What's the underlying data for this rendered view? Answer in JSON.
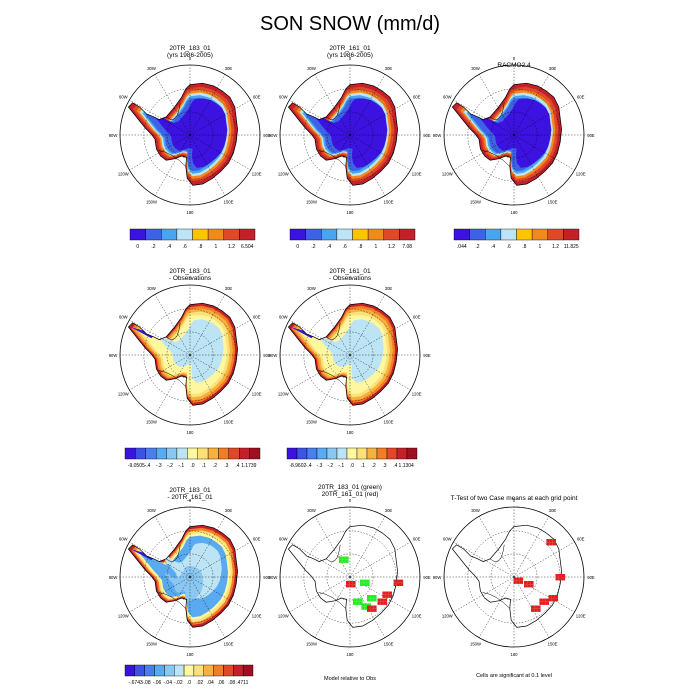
{
  "title": "SON SNOW (mm/d)",
  "colors": {
    "snow_scale": [
      "#3b12e0",
      "#3d62e6",
      "#48a5f0",
      "#bde4f5",
      "#ffc400",
      "#f08a1c",
      "#e0482a",
      "#c4202a"
    ],
    "diff_scale": [
      "#3b12e0",
      "#3d52e6",
      "#4a7df0",
      "#5aaaf2",
      "#8ac8f2",
      "#bde4f5",
      "#fdf8a0",
      "#fde07a",
      "#f7b13f",
      "#f27d24",
      "#e0482a",
      "#c4202a",
      "#9e1020"
    ],
    "green": "#22ee22",
    "red": "#e02020"
  },
  "panels": [
    {
      "id": "p1",
      "type": "snow",
      "title": [
        "20TR_183_01",
        "(yrs 1986-2005)"
      ],
      "colorbar": {
        "ticks": [
          "0",
          ".2",
          ".4",
          ".6",
          ".8",
          "1",
          "1.2",
          "6.504"
        ]
      }
    },
    {
      "id": "p2",
      "type": "snow",
      "title": [
        "20TR_161_01",
        "(yrs 1986-2005)"
      ],
      "colorbar": {
        "ticks": [
          "0",
          ".2",
          ".4",
          ".6",
          ".8",
          "1",
          "1.2",
          "7.08"
        ]
      }
    },
    {
      "id": "p3",
      "type": "snow",
      "title": [
        "RACMO2.4"
      ],
      "colorbar": {
        "ticks": [
          ".044",
          ".2",
          ".4",
          ".6",
          ".8",
          "1",
          "1.2",
          "11.825"
        ]
      }
    },
    {
      "id": "p4",
      "type": "diff",
      "title": [
        "20TR_183_01",
        "- Observations"
      ],
      "colorbar": {
        "ticks": [
          "-9.0505",
          "-.4",
          "-.3",
          "-.2",
          "-.1",
          ".0",
          ".1",
          ".2",
          ".3",
          ".4",
          "1.1739"
        ]
      }
    },
    {
      "id": "p5",
      "type": "diff",
      "title": [
        "20TR_161_01",
        "- Observations"
      ],
      "colorbar": {
        "ticks": [
          "-8.9602",
          "-.4",
          "-.3",
          "-.2",
          "-.1",
          ".0",
          ".1",
          ".2",
          ".3",
          ".4",
          "1.1304"
        ]
      }
    },
    {
      "id": "p6",
      "type": "diff",
      "title": [
        "20TR_183_01",
        "- 20TR_161_01"
      ],
      "colorbar": {
        "ticks": [
          "-.6743",
          "-.08",
          "-.06",
          "-.04",
          "-.02",
          ".0",
          ".02",
          ".04",
          ".06",
          ".08",
          ".4711"
        ]
      }
    },
    {
      "id": "p7",
      "type": "sig",
      "title": [
        "20TR_183_01 (green)",
        "20TR_161_01 (red)"
      ],
      "caption": "Model relative to Obs"
    },
    {
      "id": "p8",
      "type": "sig",
      "title": [
        "T-Test of two Case means at each grid point"
      ],
      "caption": "Cells are significant at 0.1 level"
    }
  ],
  "lon_labels": [
    "0",
    "30E",
    "60E",
    "90E",
    "120E",
    "150E",
    "180",
    "150W",
    "120W",
    "90W",
    "60W",
    "30W"
  ],
  "chart_data": [
    {
      "type": "heatmap",
      "projection": "south-polar-stereographic",
      "title": "20TR_183_01 (yrs 1986-2005)",
      "unit": "mm/d",
      "levels": [
        0,
        0.2,
        0.4,
        0.6,
        0.8,
        1,
        1.2
      ],
      "max": 6.504
    },
    {
      "type": "heatmap",
      "projection": "south-polar-stereographic",
      "title": "20TR_161_01 (yrs 1986-2005)",
      "unit": "mm/d",
      "levels": [
        0,
        0.2,
        0.4,
        0.6,
        0.8,
        1,
        1.2
      ],
      "max": 7.08
    },
    {
      "type": "heatmap",
      "projection": "south-polar-stereographic",
      "title": "RACMO2.4",
      "unit": "mm/d",
      "min": 0.044,
      "levels": [
        0.2,
        0.4,
        0.6,
        0.8,
        1,
        1.2
      ],
      "max": 11.825
    },
    {
      "type": "heatmap",
      "projection": "south-polar-stereographic",
      "title": "20TR_183_01 - Observations",
      "min": -9.0505,
      "levels": [
        -0.4,
        -0.3,
        -0.2,
        -0.1,
        0,
        0.1,
        0.2,
        0.3,
        0.4
      ],
      "max": 1.1739
    },
    {
      "type": "heatmap",
      "projection": "south-polar-stereographic",
      "title": "20TR_161_01 - Observations",
      "min": -8.9602,
      "levels": [
        -0.4,
        -0.3,
        -0.2,
        -0.1,
        0,
        0.1,
        0.2,
        0.3,
        0.4
      ],
      "max": 1.1304
    },
    {
      "type": "heatmap",
      "projection": "south-polar-stereographic",
      "title": "20TR_183_01 - 20TR_161_01",
      "min": -0.6743,
      "levels": [
        -0.08,
        -0.06,
        -0.04,
        -0.02,
        0,
        0.02,
        0.04,
        0.06,
        0.08
      ],
      "max": 0.4711
    },
    {
      "type": "heatmap",
      "projection": "south-polar-stereographic",
      "title": "20TR_183_01 (green) 20TR_161_01 (red)",
      "caption": "Model relative to Obs"
    },
    {
      "type": "heatmap",
      "projection": "south-polar-stereographic",
      "title": "T-Test of two Case means at each grid point",
      "caption": "Cells are significant at 0.1 level"
    }
  ]
}
